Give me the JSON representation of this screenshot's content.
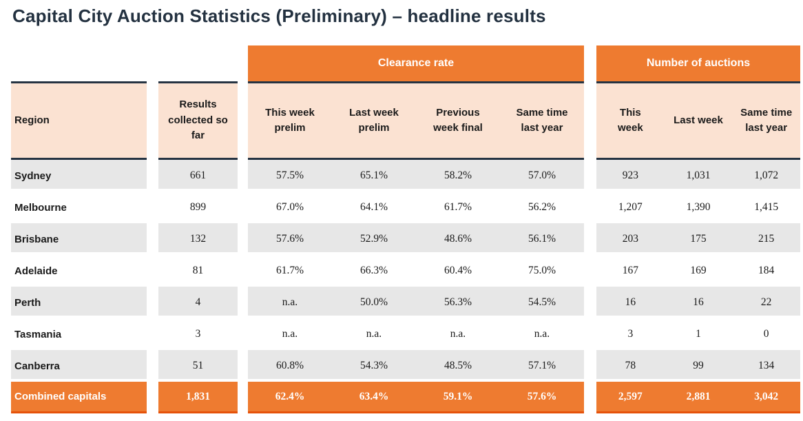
{
  "title": "Capital City Auction Statistics (Preliminary) – headline results",
  "colors": {
    "orange": "#EE7B30",
    "peach": "#FBE2D2",
    "row_gray": "#E7E7E7",
    "dark_border": "#253342",
    "total_underline": "#E5520A",
    "title_text": "#233140",
    "body_text": "#1A1A1A"
  },
  "table": {
    "groups": [
      {
        "label": "Clearance rate"
      },
      {
        "label": "Number of auctions"
      }
    ],
    "columns": {
      "region": "Region",
      "results": "Results\ncollected so\nfar",
      "clearance": [
        "This week\nprelim",
        "Last week\nprelim",
        "Previous\nweek final",
        "Same time\nlast year"
      ],
      "auctions": [
        "This\nweek",
        "Last week",
        "Same time\nlast year"
      ]
    },
    "rows": [
      {
        "region": "Sydney",
        "results": "661",
        "clearance": [
          "57.5%",
          "65.1%",
          "58.2%",
          "57.0%"
        ],
        "auctions": [
          "923",
          "1,031",
          "1,072"
        ],
        "highlight": false
      },
      {
        "region": "Melbourne",
        "results": "899",
        "clearance": [
          "67.0%",
          "64.1%",
          "61.7%",
          "56.2%"
        ],
        "auctions": [
          "1,207",
          "1,390",
          "1,415"
        ],
        "highlight": false
      },
      {
        "region": "Brisbane",
        "results": "132",
        "clearance": [
          "57.6%",
          "52.9%",
          "48.6%",
          "56.1%"
        ],
        "auctions": [
          "203",
          "175",
          "215"
        ],
        "highlight": false
      },
      {
        "region": "Adelaide",
        "results": "81",
        "clearance": [
          "61.7%",
          "66.3%",
          "60.4%",
          "75.0%"
        ],
        "auctions": [
          "167",
          "169",
          "184"
        ],
        "highlight": false
      },
      {
        "region": "Perth",
        "results": "4",
        "clearance": [
          "n.a.",
          "50.0%",
          "56.3%",
          "54.5%"
        ],
        "auctions": [
          "16",
          "16",
          "22"
        ],
        "highlight": false
      },
      {
        "region": "Tasmania",
        "results": "3",
        "clearance": [
          "n.a.",
          "n.a.",
          "n.a.",
          "n.a."
        ],
        "auctions": [
          "3",
          "1",
          "0"
        ],
        "highlight": false
      },
      {
        "region": "Canberra",
        "results": "51",
        "clearance": [
          "60.8%",
          "54.3%",
          "48.5%",
          "57.1%"
        ],
        "auctions": [
          "78",
          "99",
          "134"
        ],
        "highlight": false
      },
      {
        "region": "Combined capitals",
        "results": "1,831",
        "clearance": [
          "62.4%",
          "63.4%",
          "59.1%",
          "57.6%"
        ],
        "auctions": [
          "2,597",
          "2,881",
          "3,042"
        ],
        "highlight": true
      }
    ]
  }
}
